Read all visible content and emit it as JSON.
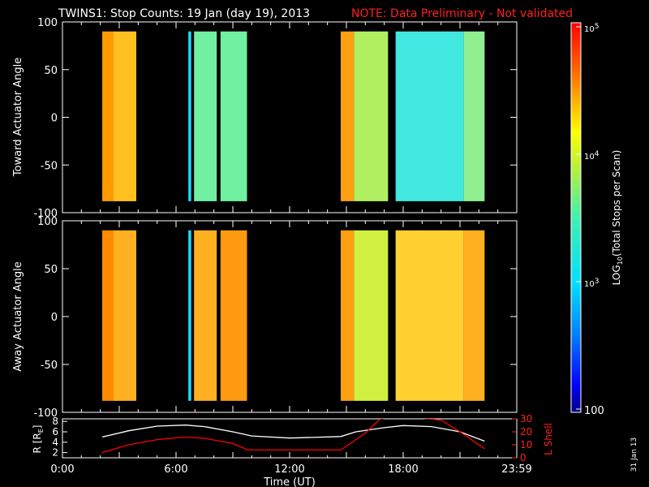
{
  "header": {
    "title": "TWINS1: Stop Counts: 19 Jan (day  19), 2013",
    "note": "NOTE: Data Preliminary - Not validated"
  },
  "side_date": "31 Jan 13",
  "chart_data": [
    {
      "type": "heatmap",
      "name": "toward",
      "ylabel": "Toward Actuator Angle",
      "ylim": [
        -100,
        100
      ],
      "yticks": [
        100,
        50,
        0,
        -50,
        -100
      ],
      "xlim_hours": [
        0,
        24
      ],
      "blocks": [
        {
          "t0": 2.1,
          "t1": 2.7,
          "c": "#ff9a00"
        },
        {
          "t0": 2.7,
          "t1": 3.9,
          "c": "#ffc020"
        },
        {
          "t0": 6.65,
          "t1": 6.8,
          "c": "#20d8ff"
        },
        {
          "t0": 6.95,
          "t1": 8.15,
          "c": "#70f0a0"
        },
        {
          "t0": 8.35,
          "t1": 9.75,
          "c": "#70f0a0"
        },
        {
          "t0": 14.7,
          "t1": 15.4,
          "c": "#ffa010"
        },
        {
          "t0": 15.4,
          "t1": 17.2,
          "c": "#b0f060"
        },
        {
          "t0": 17.6,
          "t1": 21.2,
          "c": "#40e8e0"
        },
        {
          "t0": 21.2,
          "t1": 22.3,
          "c": "#90f090"
        }
      ]
    },
    {
      "type": "heatmap",
      "name": "away",
      "ylabel": "Away Actuator Angle",
      "ylim": [
        -100,
        100
      ],
      "yticks": [
        100,
        50,
        0,
        -50,
        -100
      ],
      "xlim_hours": [
        0,
        24
      ],
      "blocks": [
        {
          "t0": 2.1,
          "t1": 2.7,
          "c": "#ff8a00"
        },
        {
          "t0": 2.7,
          "t1": 3.9,
          "c": "#ffb020"
        },
        {
          "t0": 6.65,
          "t1": 6.8,
          "c": "#20d8ff"
        },
        {
          "t0": 6.95,
          "t1": 8.15,
          "c": "#ffb020"
        },
        {
          "t0": 8.35,
          "t1": 9.75,
          "c": "#ff9a10"
        },
        {
          "t0": 14.7,
          "t1": 15.4,
          "c": "#ffa010"
        },
        {
          "t0": 15.4,
          "t1": 17.2,
          "c": "#d0f040"
        },
        {
          "t0": 17.6,
          "t1": 21.2,
          "c": "#ffd030"
        },
        {
          "t0": 21.2,
          "t1": 22.3,
          "c": "#ffb020"
        }
      ]
    },
    {
      "type": "line",
      "name": "orbit",
      "ylabel_left": "R [R",
      "ylabel_left_sub": "E",
      "ylabel_left_end": "]",
      "ylabel_right": "L Shell",
      "xlabel": "Time (UT)",
      "xticklabels": [
        "0:00",
        "6:00",
        "12:00",
        "18:00",
        "23:59"
      ],
      "xticks_hours": [
        0,
        6,
        12,
        18,
        24
      ],
      "ylim_left": [
        1,
        8.5
      ],
      "yticks_left": [
        2,
        4,
        6,
        8
      ],
      "ylim_right": [
        0,
        30
      ],
      "yticks_right": [
        0,
        10,
        20,
        30
      ],
      "series": [
        {
          "axis": "left",
          "color": "#ffffff",
          "x": [
            2.1,
            3.5,
            5,
            6.5,
            7.5,
            9,
            10,
            12,
            14.7,
            15.5,
            17,
            18,
            19.5,
            21,
            22.3
          ],
          "y": [
            5.0,
            6.2,
            7.1,
            7.3,
            7.0,
            6.0,
            5.2,
            4.8,
            5.1,
            6.0,
            6.8,
            7.2,
            7.0,
            6.0,
            4.2
          ]
        },
        {
          "axis": "right",
          "color": "#ff0000",
          "x": [
            2.1,
            3.5,
            5,
            6.5,
            7.5,
            9,
            9.8,
            12,
            14.7,
            16,
            16.8,
            18,
            20,
            21,
            22.3
          ],
          "y": [
            4,
            10,
            14,
            16,
            15,
            11,
            6,
            6,
            6,
            19,
            30,
            32,
            29,
            20,
            7
          ]
        }
      ]
    }
  ],
  "colorbar": {
    "label_pre": "LOG",
    "label_sub": "10",
    "label_post": "(Total Stops per Scan)",
    "tick_top": "10",
    "tick_top_sup": "5",
    "tick_mid": "10",
    "tick_mid_sup": "4",
    "tick_low": "10",
    "tick_low_sup": "3",
    "tick_bottom": "100"
  }
}
